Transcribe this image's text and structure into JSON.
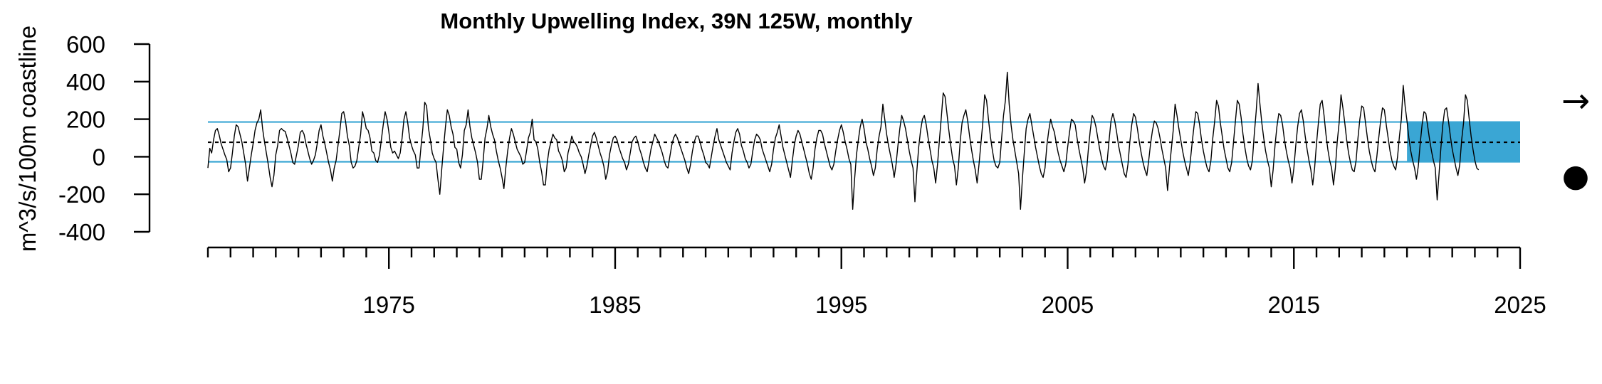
{
  "chart_data": {
    "type": "line",
    "title": "Monthly Upwelling Index, 39N 125W, monthly",
    "xlabel": "",
    "ylabel": "m^3/s/100m coastline",
    "xlim": [
      1967.0,
      2025.0
    ],
    "ylim": [
      -400,
      600
    ],
    "yticks": [
      600,
      400,
      200,
      0,
      -200,
      -400
    ],
    "xticks_labeled": [
      1975,
      1985,
      1995,
      2005,
      2015,
      2025
    ],
    "xticks_minor_start": 1967,
    "xticks_minor_end": 2025,
    "grid": false,
    "mean": 77,
    "band_upper": 185,
    "band_lower": -27,
    "highlight_window": [
      2020.0,
      2025.0
    ],
    "trend_symbol": "→",
    "status_symbol": "●",
    "colors": {
      "band": "#3aa6d4",
      "highlight": "#3aa6d4",
      "line": "#000000",
      "mean_line": "#000000"
    },
    "series": [
      {
        "start_year": 1967.0,
        "step": 0.0833333,
        "values": [
          -60,
          45,
          20,
          90,
          140,
          150,
          115,
          70,
          40,
          10,
          -15,
          -80,
          -60,
          20,
          110,
          170,
          160,
          120,
          80,
          20,
          -40,
          -130,
          -60,
          10,
          70,
          140,
          180,
          200,
          250,
          150,
          80,
          20,
          -40,
          -110,
          -160,
          -100,
          10,
          60,
          140,
          150,
          140,
          135,
          100,
          60,
          20,
          -30,
          -40,
          10,
          60,
          130,
          140,
          120,
          70,
          30,
          -10,
          -40,
          -20,
          10,
          70,
          140,
          170,
          110,
          70,
          20,
          -30,
          -70,
          -130,
          -60,
          -20,
          60,
          140,
          230,
          240,
          190,
          110,
          60,
          -30,
          -60,
          -50,
          -20,
          50,
          120,
          240,
          200,
          150,
          140,
          100,
          30,
          20,
          -20,
          -30,
          10,
          90,
          170,
          240,
          200,
          130,
          50,
          20,
          30,
          10,
          -10,
          20,
          100,
          200,
          240,
          180,
          100,
          60,
          30,
          10,
          -60,
          -60,
          50,
          150,
          290,
          270,
          150,
          90,
          20,
          -10,
          -30,
          -120,
          -200,
          -70,
          50,
          160,
          250,
          220,
          160,
          120,
          50,
          40,
          -30,
          -60,
          10,
          140,
          170,
          250,
          160,
          100,
          60,
          20,
          -30,
          -120,
          -120,
          -20,
          100,
          150,
          220,
          160,
          120,
          90,
          30,
          -20,
          -60,
          -110,
          -170,
          -60,
          30,
          100,
          150,
          120,
          80,
          40,
          20,
          0,
          -40,
          -30,
          30,
          100,
          130,
          200,
          90,
          80,
          40,
          -30,
          -80,
          -150,
          -150,
          -30,
          40,
          80,
          120,
          100,
          90,
          30,
          10,
          -20,
          -80,
          -60,
          20,
          60,
          110,
          80,
          70,
          50,
          20,
          0,
          -40,
          -90,
          -50,
          10,
          60,
          110,
          130,
          100,
          60,
          20,
          -10,
          -50,
          -120,
          -80,
          10,
          60,
          100,
          110,
          90,
          50,
          20,
          -10,
          -30,
          -70,
          -40,
          20,
          80,
          100,
          110,
          80,
          40,
          10,
          -30,
          -60,
          -80,
          -20,
          40,
          80,
          120,
          100,
          80,
          50,
          20,
          -20,
          -50,
          -60,
          0,
          60,
          100,
          120,
          100,
          70,
          40,
          10,
          -20,
          -60,
          -90,
          -40,
          30,
          80,
          110,
          110,
          80,
          40,
          10,
          -30,
          -40,
          -60,
          0,
          60,
          110,
          150,
          90,
          60,
          30,
          0,
          -30,
          -50,
          -70,
          20,
          80,
          130,
          150,
          120,
          60,
          30,
          -10,
          -30,
          -60,
          -40,
          30,
          90,
          120,
          110,
          90,
          40,
          10,
          -20,
          -50,
          -80,
          -40,
          40,
          100,
          130,
          170,
          110,
          50,
          10,
          -30,
          -70,
          -110,
          -20,
          60,
          110,
          140,
          120,
          80,
          40,
          0,
          -40,
          -90,
          -120,
          -60,
          40,
          100,
          140,
          140,
          120,
          70,
          30,
          -10,
          -50,
          -70,
          -40,
          30,
          90,
          140,
          170,
          130,
          80,
          40,
          -10,
          -40,
          -280,
          -120,
          10,
          90,
          160,
          200,
          150,
          80,
          40,
          -10,
          -50,
          -100,
          -60,
          40,
          110,
          160,
          280,
          200,
          120,
          60,
          10,
          -40,
          -110,
          -40,
          60,
          150,
          220,
          190,
          150,
          90,
          30,
          -20,
          -60,
          -240,
          -80,
          50,
          140,
          200,
          220,
          170,
          100,
          40,
          -20,
          -60,
          -140,
          -40,
          90,
          210,
          340,
          320,
          230,
          140,
          60,
          -10,
          -50,
          -150,
          -60,
          80,
          180,
          220,
          250,
          190,
          110,
          40,
          -20,
          -70,
          -140,
          -40,
          70,
          180,
          330,
          300,
          200,
          110,
          40,
          -20,
          -50,
          -60,
          -30,
          100,
          220,
          300,
          450,
          280,
          170,
          90,
          30,
          -30,
          -90,
          -280,
          -120,
          20,
          150,
          200,
          230,
          170,
          110,
          50,
          0,
          -50,
          -90,
          -110,
          -60,
          60,
          140,
          200,
          160,
          130,
          70,
          20,
          -20,
          -50,
          -80,
          -40,
          50,
          130,
          200,
          190,
          170,
          100,
          40,
          -10,
          -60,
          -140,
          -80,
          40,
          140,
          220,
          200,
          160,
          100,
          40,
          -10,
          -50,
          -70,
          -20,
          90,
          190,
          230,
          190,
          130,
          60,
          10,
          -40,
          -90,
          -110,
          -40,
          80,
          170,
          230,
          210,
          150,
          80,
          20,
          -30,
          -70,
          -100,
          -20,
          70,
          140,
          190,
          180,
          150,
          100,
          40,
          -10,
          -60,
          -180,
          -60,
          40,
          140,
          280,
          220,
          150,
          90,
          30,
          -20,
          -60,
          -100,
          -30,
          70,
          160,
          240,
          230,
          170,
          90,
          30,
          -20,
          -60,
          -80,
          -20,
          100,
          190,
          300,
          270,
          180,
          110,
          40,
          -10,
          -60,
          -80,
          -30,
          80,
          190,
          300,
          280,
          210,
          120,
          50,
          -10,
          -50,
          -70,
          -20,
          120,
          240,
          390,
          280,
          180,
          100,
          30,
          -20,
          -60,
          -160,
          -70,
          60,
          160,
          230,
          220,
          170,
          90,
          30,
          -20,
          -60,
          -140,
          -60,
          60,
          160,
          230,
          250,
          190,
          110,
          40,
          -20,
          -70,
          -150,
          -60,
          70,
          180,
          280,
          300,
          220,
          120,
          40,
          -20,
          -60,
          -150,
          -60,
          80,
          180,
          330,
          260,
          180,
          90,
          20,
          -30,
          -70,
          -80,
          -20,
          100,
          200,
          270,
          260,
          180,
          100,
          30,
          -20,
          -60,
          -80,
          0,
          100,
          190,
          260,
          250,
          170,
          100,
          30,
          -20,
          -50,
          -70,
          0,
          110,
          200,
          380,
          270,
          190,
          100,
          30,
          -20,
          -60,
          -120,
          -50,
          70,
          170,
          240,
          230,
          160,
          90,
          30,
          -20,
          -60,
          -230,
          -90,
          50,
          170,
          250,
          260,
          190,
          110,
          40,
          -10,
          -60,
          -100,
          -40,
          90,
          180,
          330,
          300,
          200,
          110,
          40,
          -20,
          -60,
          -70
        ]
      }
    ]
  }
}
